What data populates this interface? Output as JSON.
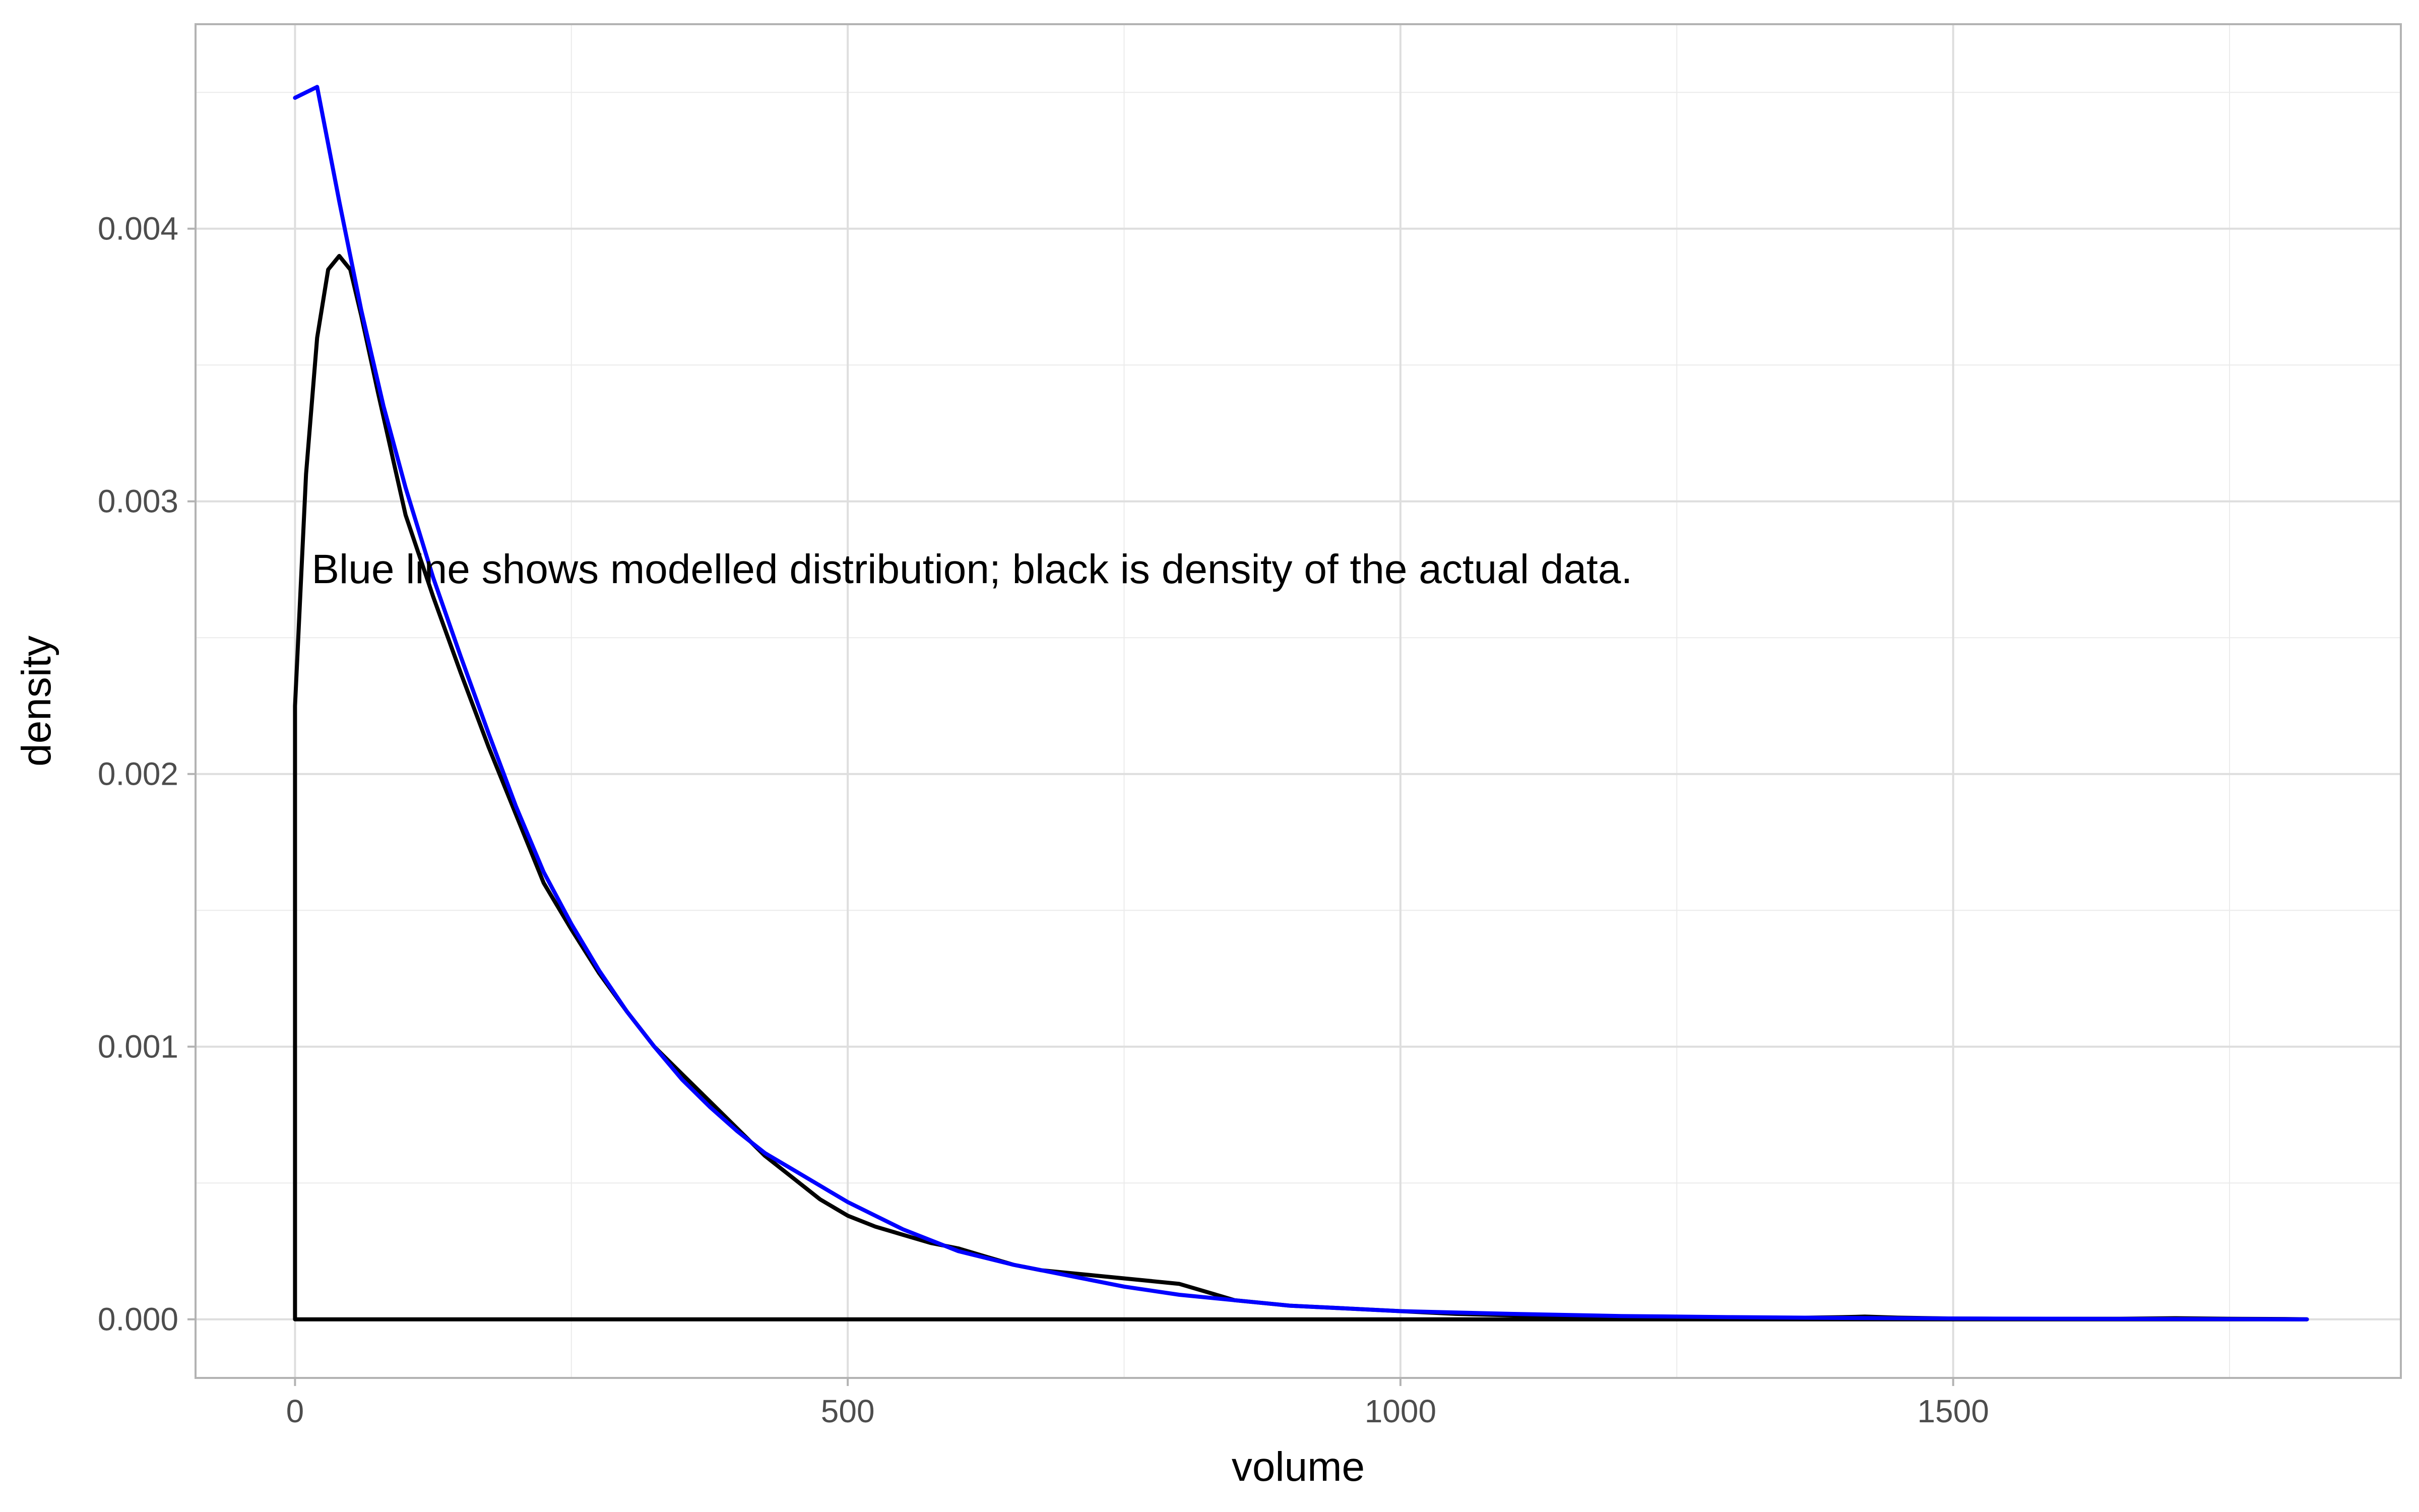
{
  "chart_data": {
    "type": "line",
    "title": "",
    "xlabel": "volume",
    "ylabel": "density",
    "xlim": [
      -90,
      1905
    ],
    "ylim": [
      -0.000215,
      0.00475
    ],
    "x_ticks": [
      0,
      500,
      1000,
      1500
    ],
    "x_tick_labels": [
      "0",
      "500",
      "1000",
      "1500"
    ],
    "x_minor_ticks": [
      250,
      750,
      1250,
      1750
    ],
    "y_ticks": [
      0,
      0.001,
      0.002,
      0.003,
      0.004
    ],
    "y_tick_labels": [
      "0.000",
      "0.001",
      "0.002",
      "0.003",
      "0.004"
    ],
    "y_minor_ticks": [
      0.0005,
      0.0015,
      0.0025,
      0.0035,
      0.0045
    ],
    "grid": true,
    "theme": "light",
    "legend": "none",
    "annotation": {
      "text": "Blue line shows modelled distribution; black is density of the actual data.",
      "x": 15,
      "y": 0.0027
    },
    "series": [
      {
        "color": "#000000",
        "kind": "density",
        "points": [
          [
            0,
            0
          ],
          [
            0,
            0.00225
          ],
          [
            10,
            0.0031
          ],
          [
            20,
            0.0036
          ],
          [
            30,
            0.00385
          ],
          [
            40,
            0.0039
          ],
          [
            50,
            0.00385
          ],
          [
            60,
            0.00368
          ],
          [
            75,
            0.0034
          ],
          [
            100,
            0.00295
          ],
          [
            125,
            0.00265
          ],
          [
            150,
            0.00237
          ],
          [
            175,
            0.0021
          ],
          [
            200,
            0.00185
          ],
          [
            225,
            0.0016
          ],
          [
            250,
            0.00143
          ],
          [
            275,
            0.00127
          ],
          [
            300,
            0.00113
          ],
          [
            325,
            0.001
          ],
          [
            350,
            0.0009
          ],
          [
            375,
            0.0008
          ],
          [
            400,
            0.0007
          ],
          [
            425,
            0.0006
          ],
          [
            450,
            0.00052
          ],
          [
            475,
            0.00044
          ],
          [
            500,
            0.00038
          ],
          [
            525,
            0.00034
          ],
          [
            550,
            0.00031
          ],
          [
            575,
            0.00028
          ],
          [
            600,
            0.00026
          ],
          [
            625,
            0.00023
          ],
          [
            650,
            0.0002
          ],
          [
            675,
            0.00018
          ],
          [
            700,
            0.00017
          ],
          [
            725,
            0.00016
          ],
          [
            750,
            0.00015
          ],
          [
            775,
            0.00014
          ],
          [
            800,
            0.00013
          ],
          [
            825,
            0.0001
          ],
          [
            850,
            7e-05
          ],
          [
            875,
            6e-05
          ],
          [
            900,
            5e-05
          ],
          [
            950,
            4e-05
          ],
          [
            1000,
            3e-05
          ],
          [
            1050,
            2e-05
          ],
          [
            1100,
            1.5e-05
          ],
          [
            1150,
            1e-05
          ],
          [
            1200,
            1e-05
          ],
          [
            1250,
            8e-06
          ],
          [
            1300,
            6e-06
          ],
          [
            1350,
            5e-06
          ],
          [
            1400,
            8e-06
          ],
          [
            1420,
            1e-05
          ],
          [
            1450,
            6e-06
          ],
          [
            1500,
            3e-06
          ],
          [
            1550,
            2e-06
          ],
          [
            1600,
            2e-06
          ],
          [
            1650,
            2e-06
          ],
          [
            1700,
            4e-06
          ],
          [
            1750,
            2e-06
          ],
          [
            1800,
            1e-06
          ],
          [
            1820,
            0
          ],
          [
            0,
            0
          ]
        ]
      },
      {
        "color": "#0000ff",
        "kind": "model",
        "points": [
          [
            0,
            0.00448
          ],
          [
            20,
            0.00452
          ],
          [
            40,
            0.0041
          ],
          [
            60,
            0.0037
          ],
          [
            80,
            0.00335
          ],
          [
            100,
            0.00305
          ],
          [
            125,
            0.00272
          ],
          [
            150,
            0.00243
          ],
          [
            175,
            0.00215
          ],
          [
            200,
            0.00188
          ],
          [
            225,
            0.00164
          ],
          [
            250,
            0.00145
          ],
          [
            275,
            0.00128
          ],
          [
            300,
            0.00113
          ],
          [
            325,
            0.001
          ],
          [
            350,
            0.00088
          ],
          [
            375,
            0.00078
          ],
          [
            400,
            0.00069
          ],
          [
            425,
            0.00061
          ],
          [
            450,
            0.00055
          ],
          [
            475,
            0.00049
          ],
          [
            500,
            0.00043
          ],
          [
            550,
            0.00033
          ],
          [
            600,
            0.00025
          ],
          [
            650,
            0.0002
          ],
          [
            700,
            0.00016
          ],
          [
            750,
            0.00012
          ],
          [
            800,
            9e-05
          ],
          [
            850,
            7e-05
          ],
          [
            900,
            5e-05
          ],
          [
            950,
            4e-05
          ],
          [
            1000,
            3e-05
          ],
          [
            1100,
            2e-05
          ],
          [
            1200,
            1.2e-05
          ],
          [
            1300,
            8e-06
          ],
          [
            1400,
            5e-06
          ],
          [
            1500,
            3e-06
          ],
          [
            1600,
            2e-06
          ],
          [
            1700,
            1e-06
          ],
          [
            1820,
            0
          ]
        ]
      }
    ]
  }
}
